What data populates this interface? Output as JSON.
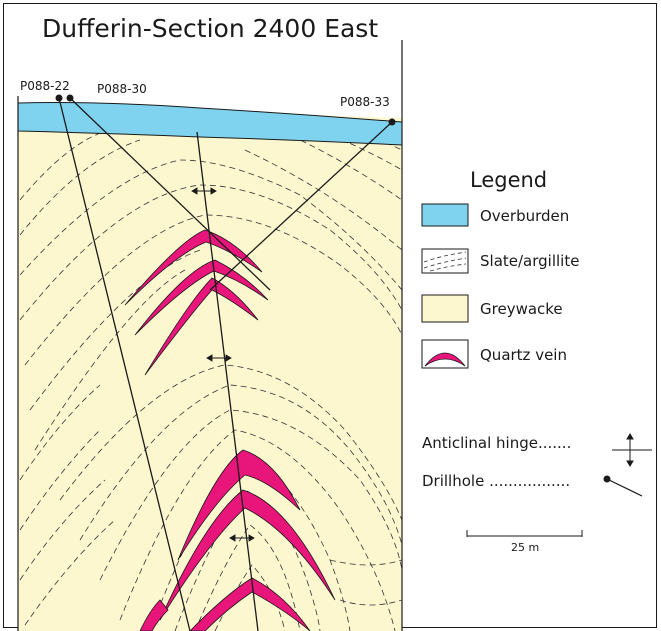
{
  "title": "Dufferin-Section 2400 East",
  "drillholes": [
    {
      "id": "dh-1",
      "label": "P088-22"
    },
    {
      "id": "dh-2",
      "label": "P088-30"
    },
    {
      "id": "dh-3",
      "label": "P088-33"
    }
  ],
  "legend": {
    "heading": "Legend",
    "items": [
      {
        "key": "overburden",
        "label": "Overburden"
      },
      {
        "key": "slate",
        "label": "Slate/argillite"
      },
      {
        "key": "greywacke",
        "label": "Greywacke"
      },
      {
        "key": "quartz",
        "label": "Quartz vein"
      }
    ],
    "symbols": [
      {
        "key": "hinge",
        "label": "Anticlinal hinge......."
      },
      {
        "key": "drillhole",
        "label": "Drillhole ................."
      }
    ],
    "scale_label": "25 m"
  },
  "colors": {
    "overburden": "#7fd3ef",
    "greywacke": "#fdf7cf",
    "quartz": "#e8157a",
    "line": "#1a1a1a"
  }
}
